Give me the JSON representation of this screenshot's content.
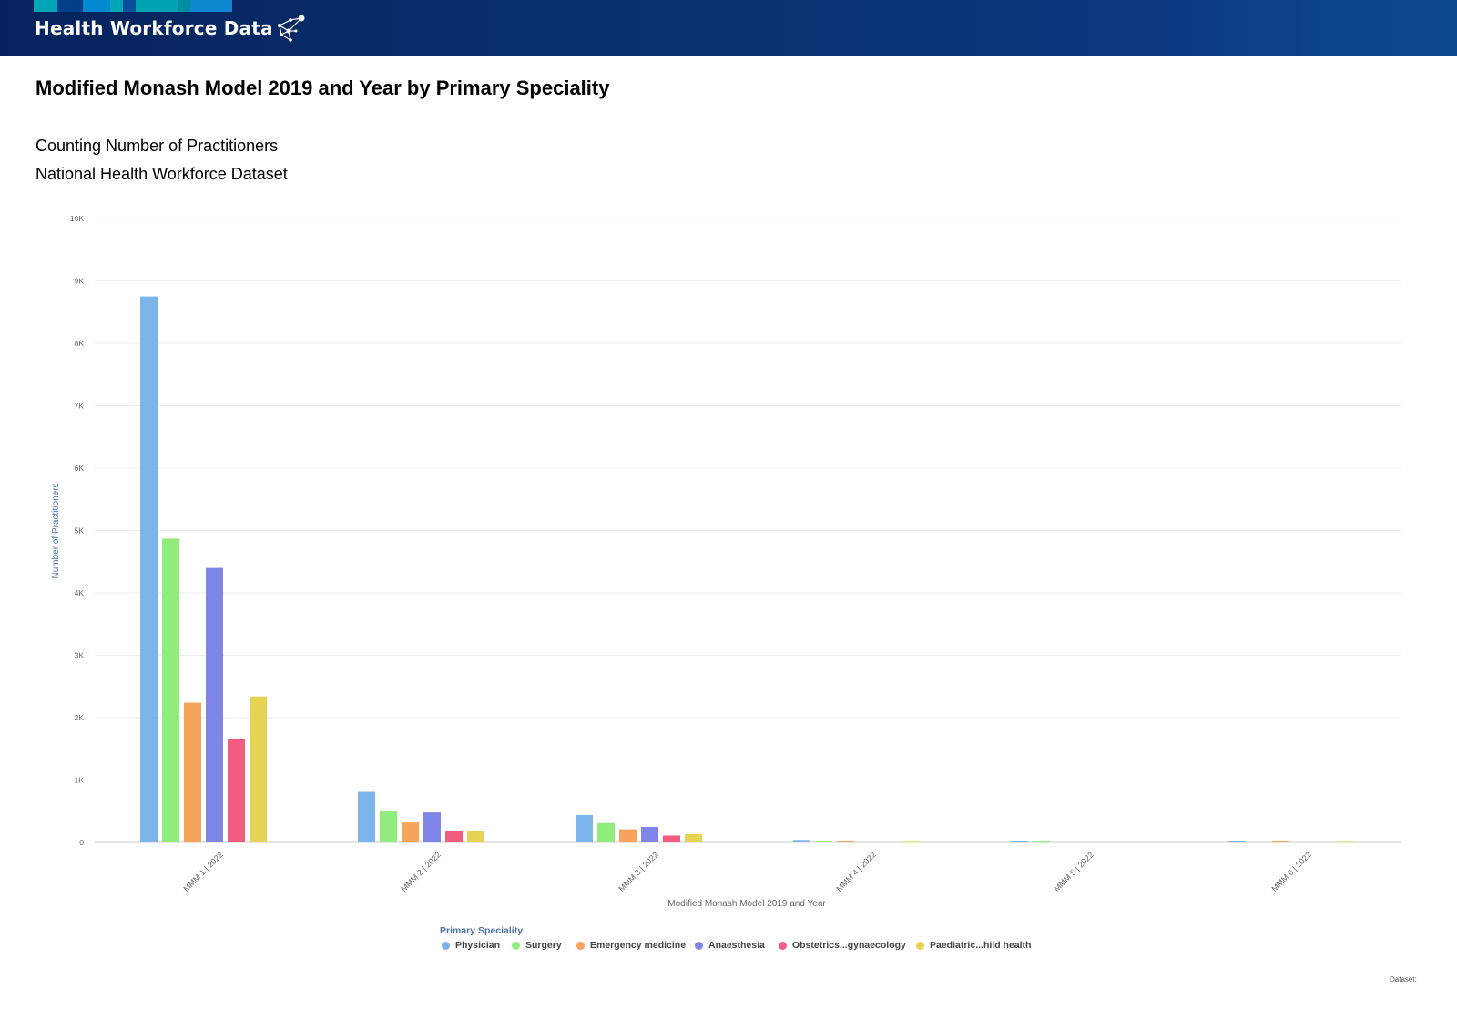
{
  "header": {
    "brand": "Health Workforce Data",
    "icon": "network-icon",
    "stripe_colors": [
      "#00a6b8",
      "#003f8a",
      "#0088d1",
      "#00a6b8",
      "#0a4d9a",
      "#00a3b0",
      "#008ea0",
      "#0b86cf"
    ]
  },
  "page": {
    "title": "Modified Monash Model 2019 and Year by Primary Speciality",
    "subtitle1": "Counting Number of Practitioners",
    "subtitle2": "National Health Workforce Dataset",
    "dataset_note": "Dataset:"
  },
  "chart_data": {
    "type": "bar",
    "title": "",
    "xlabel": "Modified Monash Model 2019 and Year",
    "ylabel": "Number of Practitioners",
    "ylim": [
      0,
      10000
    ],
    "yticks": [
      0,
      1000,
      2000,
      3000,
      4000,
      5000,
      6000,
      7000,
      8000,
      9000,
      10000
    ],
    "ytick_labels": [
      "0",
      "1K",
      "2K",
      "3K",
      "4K",
      "5K",
      "6K",
      "7K",
      "8K",
      "9K",
      "10K"
    ],
    "grid": true,
    "legend_title": "Primary Speciality",
    "legend_position": "bottom",
    "categories": [
      "MMM 1 | 2022",
      "MMM 2 | 2022",
      "MMM 3 | 2022",
      "MMM 4 | 2022",
      "MMM 5 | 2022",
      "MMM 6 | 2022"
    ],
    "series": [
      {
        "name": "Physician",
        "color": "#7cb5ec",
        "values": [
          8750,
          810,
          440,
          40,
          15,
          15
        ]
      },
      {
        "name": "Surgery",
        "color": "#90ed7d",
        "values": [
          4870,
          510,
          310,
          30,
          15,
          0
        ]
      },
      {
        "name": "Emergency medicine",
        "color": "#f7a35c",
        "values": [
          2240,
          320,
          210,
          15,
          0,
          30
        ]
      },
      {
        "name": "Anaesthesia",
        "color": "#8085e9",
        "values": [
          4400,
          480,
          250,
          0,
          0,
          0
        ]
      },
      {
        "name": "Obstetrics...gynaecology",
        "color": "#f15c80",
        "values": [
          1660,
          190,
          110,
          0,
          0,
          0
        ]
      },
      {
        "name": "Paediatric...hild health",
        "color": "#e4d354",
        "values": [
          2340,
          190,
          130,
          10,
          0,
          10
        ]
      }
    ]
  }
}
